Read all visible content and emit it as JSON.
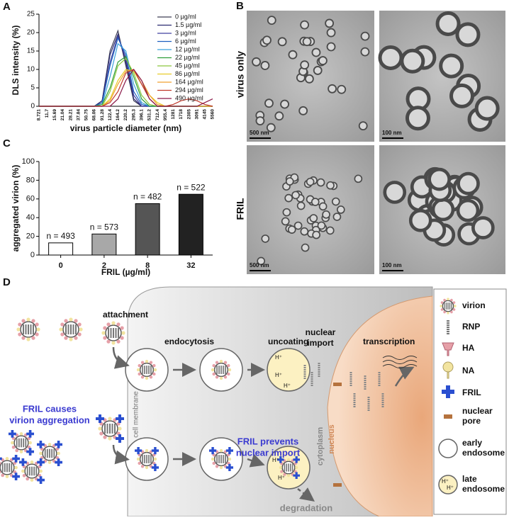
{
  "panel_labels": [
    "A",
    "B",
    "C",
    "D"
  ],
  "chart_data": [
    {
      "type": "line",
      "x_label": "virus particle diameter (nm)",
      "y_label": "DLS intensity (%)",
      "categories": [
        "8.721",
        "11.7",
        "15.69",
        "21.04",
        "28.21",
        "37.84",
        "50.75",
        "68.06",
        "91.28",
        "122.4",
        "164.2",
        "220.2",
        "295.3",
        "396.1",
        "531.2",
        "712.4",
        "955.4",
        "1281",
        "1718",
        "2305",
        "3091",
        "4145",
        "5560"
      ],
      "ylim": [
        0,
        25
      ],
      "yticks": [
        0,
        5,
        10,
        15,
        20,
        25
      ],
      "series": [
        {
          "name": "0 µg/ml",
          "color": "#3d3d55",
          "values": [
            0,
            0,
            0,
            0,
            0,
            0,
            0,
            0,
            1.5,
            15,
            20.5,
            11,
            1.5,
            0,
            0,
            0,
            0,
            0,
            0,
            0,
            0,
            0,
            0
          ]
        },
        {
          "name": "1.5 µg/ml",
          "color": "#2a2a70",
          "values": [
            0,
            0,
            0,
            0,
            0,
            0,
            0,
            0,
            1.5,
            14,
            19.5,
            12,
            2,
            0,
            0,
            0,
            0,
            0,
            0,
            0,
            0,
            0,
            0
          ]
        },
        {
          "name": "3 µg/ml",
          "color": "#4040a0",
          "values": [
            0,
            0,
            0,
            0,
            0,
            0,
            0,
            0,
            1,
            12,
            19,
            13,
            3,
            0,
            0,
            0,
            0,
            0,
            0,
            0,
            0,
            0,
            0
          ]
        },
        {
          "name": "6 µg/ml",
          "color": "#1f5fbf",
          "values": [
            0,
            0,
            0,
            0,
            0,
            0,
            0,
            0,
            1,
            11,
            18.5,
            14,
            4,
            0.5,
            0,
            0,
            0,
            0,
            0,
            0,
            0,
            0,
            0
          ]
        },
        {
          "name": "12 µg/ml",
          "color": "#3aa0dc",
          "values": [
            0,
            0,
            0,
            0,
            0,
            0,
            0,
            0,
            0.5,
            8,
            17,
            15,
            6,
            1,
            0,
            0,
            0,
            0,
            0,
            0,
            0,
            0,
            0
          ]
        },
        {
          "name": "22 µg/ml",
          "color": "#2e9e3a",
          "values": [
            0,
            0,
            0,
            0,
            0,
            0,
            0,
            0,
            0.5,
            5,
            12,
            13.5,
            8,
            2,
            0,
            0,
            0,
            0,
            0,
            0,
            0,
            0,
            0
          ]
        },
        {
          "name": "45 µg/ml",
          "color": "#8cc63f",
          "values": [
            0,
            0,
            0,
            0,
            0,
            0,
            0,
            0,
            0,
            4,
            11,
            13,
            9,
            3,
            0.5,
            0,
            0,
            0,
            0,
            0,
            0,
            0,
            0
          ]
        },
        {
          "name": "86 µg/ml",
          "color": "#e8cc2a",
          "values": [
            0,
            0,
            0,
            0,
            0,
            0,
            0,
            0,
            0,
            2,
            7,
            10,
            9.5,
            6,
            3,
            1,
            0,
            0,
            0,
            0,
            0,
            0,
            0
          ]
        },
        {
          "name": "164 µg/ml",
          "color": "#f0a030",
          "values": [
            0,
            0,
            0,
            0,
            0,
            0,
            0,
            0,
            0,
            1.5,
            6,
            9.5,
            10,
            7,
            3,
            0.5,
            0,
            0,
            0,
            0,
            0,
            0,
            0
          ]
        },
        {
          "name": "294 µg/ml",
          "color": "#c0392b",
          "values": [
            0,
            0,
            0,
            0,
            0,
            0,
            0,
            0,
            0,
            1,
            4,
            9,
            10,
            6,
            2,
            0,
            0,
            0.5,
            1.5,
            2,
            1.5,
            0.5,
            0
          ]
        },
        {
          "name": "490 µg/ml",
          "color": "#8b1a4a",
          "values": [
            0,
            0,
            0,
            0,
            0,
            0,
            0,
            0,
            0,
            0,
            2,
            7,
            10,
            7,
            2,
            0,
            0,
            0,
            0,
            0,
            0,
            1,
            2
          ]
        }
      ]
    },
    {
      "type": "bar",
      "x_label": "FRIL (µg/ml)",
      "y_label": "aggregated virion (%)",
      "categories": [
        "0",
        "2",
        "8",
        "32"
      ],
      "values": [
        13,
        22.5,
        55,
        65
      ],
      "colors": [
        "#ffffff",
        "#a8a8a8",
        "#555555",
        "#222222"
      ],
      "annotations": [
        "n = 493",
        "n = 573",
        "n = 482",
        "n = 522"
      ],
      "ylim": [
        0,
        100
      ],
      "yticks": [
        0,
        20,
        40,
        60,
        80,
        100
      ]
    }
  ],
  "micrographs": {
    "row_labels": [
      "virus only",
      "FRIL"
    ],
    "scale_bars": [
      "500 nm",
      "100 nm",
      "500 nm",
      "100 nm"
    ]
  },
  "diagram": {
    "attachment": "attachment",
    "endocytosis": "endocytosis",
    "uncoating": "uncoating",
    "nuclear_import": [
      "nuclear",
      "import"
    ],
    "transcription": "transcription",
    "aggregation": [
      "FRIL causes",
      "virion aggregation"
    ],
    "cell_membrane": "cell membrane",
    "cytoplasm": "cytoplasm",
    "nucleus": "nucleus",
    "prevents": [
      "FRIL prevents",
      "nuclear import"
    ],
    "degradation": "degradation",
    "h_plus": "H⁺",
    "legend": [
      [
        "virion"
      ],
      [
        "RNP"
      ],
      [
        "HA"
      ],
      [
        "NA"
      ],
      [
        "FRIL"
      ],
      [
        "nuclear",
        "pore"
      ],
      [
        "early",
        "endosome"
      ],
      [
        "late",
        "endosome"
      ]
    ]
  }
}
